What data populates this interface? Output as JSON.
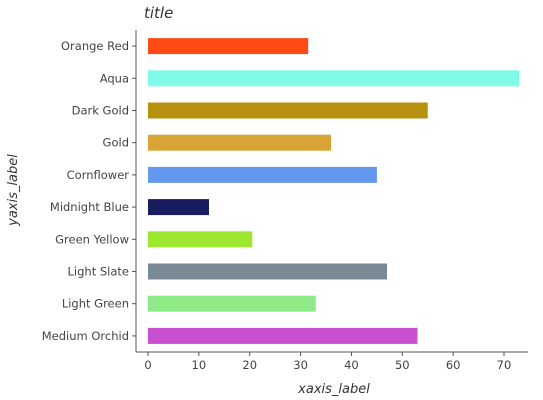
{
  "chart_data": {
    "type": "bar",
    "orientation": "horizontal",
    "title": "title",
    "xlabel": "xaxis_label",
    "ylabel": "yaxis_label",
    "categories": [
      "Medium Orchid",
      "Light Green",
      "Light Slate",
      "Green Yellow",
      "Midnight Blue",
      "Cornflower",
      "Gold",
      "Dark Gold",
      "Aqua",
      "Orange Red"
    ],
    "values": [
      53,
      33,
      47,
      20.5,
      12,
      45,
      36,
      55,
      73,
      31.5
    ],
    "colors": [
      "#c94fd1",
      "#8ee987",
      "#7a8a94",
      "#9ce82f",
      "#191c5e",
      "#6497ee",
      "#d9a338",
      "#b8900f",
      "#7ffbe7",
      "#ff4a12"
    ],
    "xlim": [
      0,
      75
    ],
    "xticks": [
      0,
      10,
      20,
      30,
      40,
      50,
      60,
      70
    ],
    "grid": false,
    "legend": "none"
  }
}
